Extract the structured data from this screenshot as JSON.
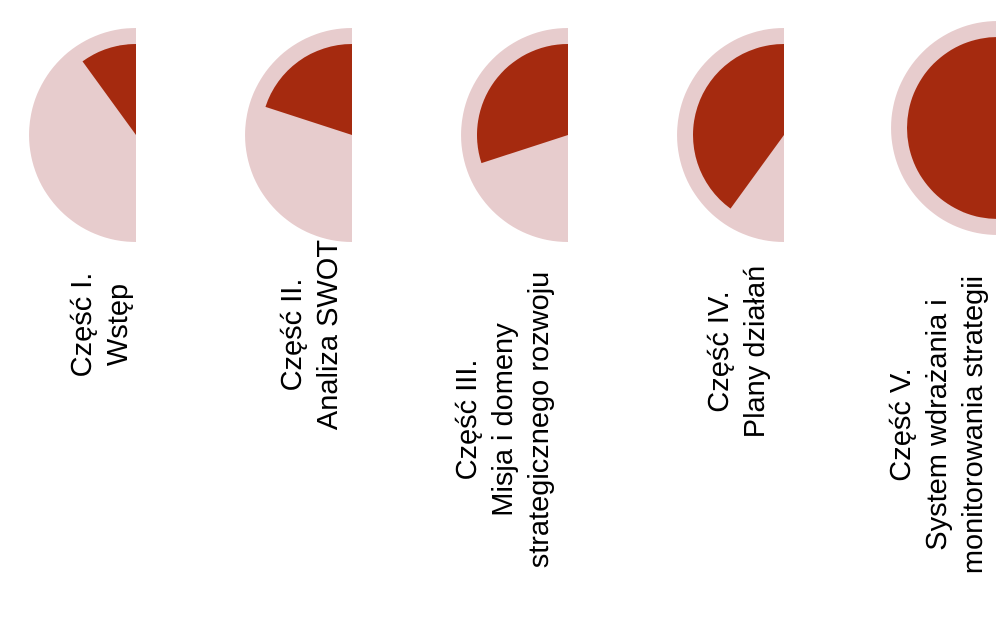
{
  "colors": {
    "pale": "#E7CCCD",
    "dark": "#A52A0F"
  },
  "stages": [
    {
      "line1": "Część I.",
      "line2": "Wstęp",
      "line3": "",
      "progress": 0.1
    },
    {
      "line1": "Część II.",
      "line2": "Analiza SWOT",
      "line3": "",
      "progress": 0.2
    },
    {
      "line1": "Część III.",
      "line2": "Misja i domeny",
      "line3": "strategicznego rozwoju",
      "progress": 0.3
    },
    {
      "line1": "Część IV.",
      "line2": "Plany działań",
      "line3": "",
      "progress": 0.4
    },
    {
      "line1": "Część V.",
      "line2": "System wdrażania i",
      "line3": "monitorowania strategii",
      "progress": 0.5
    }
  ]
}
